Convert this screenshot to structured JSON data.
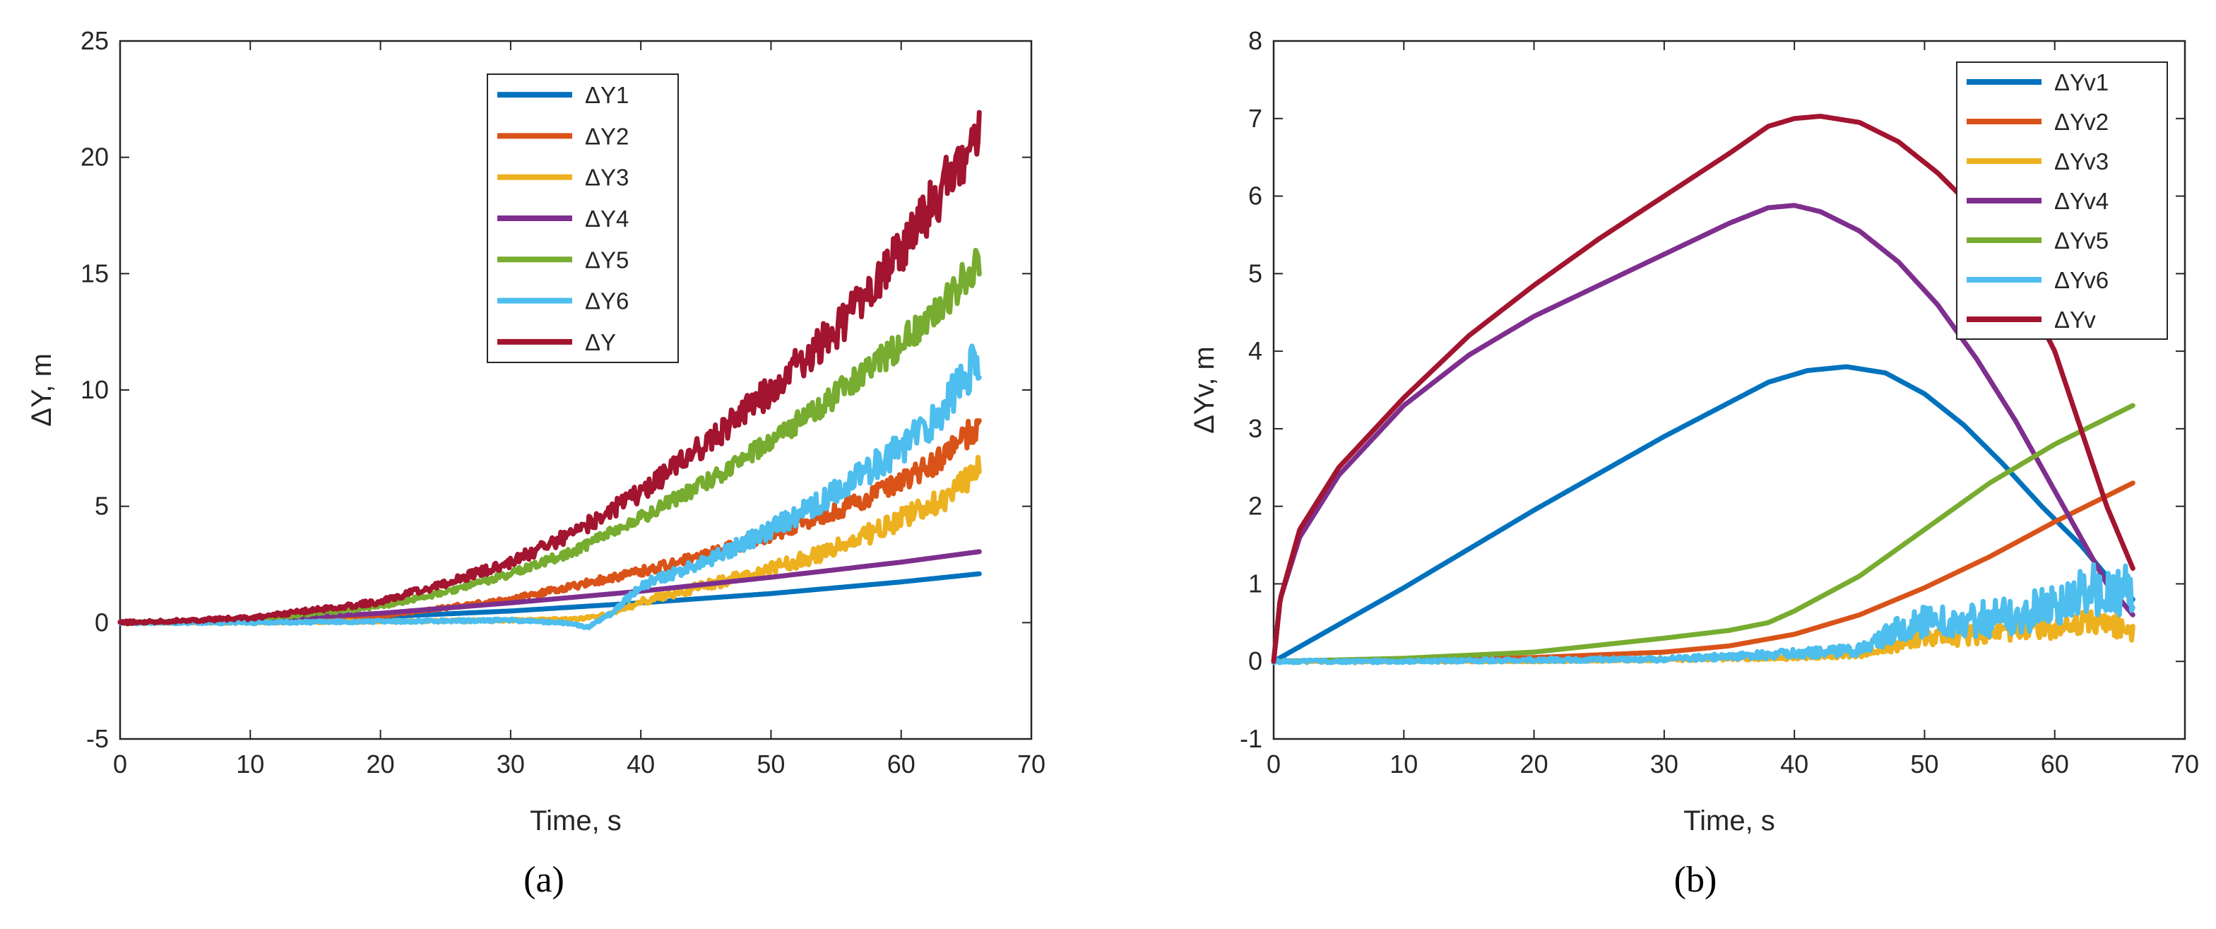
{
  "chart_data": [
    {
      "type": "line",
      "panel_label": "(a)",
      "xlabel": "Time, s",
      "ylabel": "ΔY, m",
      "xlim": [
        0,
        70
      ],
      "ylim": [
        -5,
        25
      ],
      "xticks": [
        0,
        10,
        20,
        30,
        40,
        50,
        60,
        70
      ],
      "yticks": [
        -5,
        0,
        5,
        10,
        15,
        20,
        25
      ],
      "legend_position": "top-center",
      "series": [
        {
          "name": "ΔY1",
          "color": "#0072BD",
          "x": [
            0,
            10,
            20,
            30,
            40,
            50,
            60,
            66
          ],
          "y": [
            0,
            0.08,
            0.25,
            0.5,
            0.85,
            1.25,
            1.75,
            2.1
          ],
          "noise": 0
        },
        {
          "name": "ΔY2",
          "color": "#D95319",
          "x": [
            0,
            10,
            20,
            30,
            35,
            40,
            45,
            50,
            55,
            60,
            63,
            66
          ],
          "y": [
            0,
            0.05,
            0.3,
            1.0,
            1.6,
            2.2,
            2.9,
            3.8,
            4.8,
            6.0,
            7.0,
            8.5
          ],
          "noise": 0.6
        },
        {
          "name": "ΔY3",
          "color": "#EDB120",
          "x": [
            0,
            10,
            20,
            30,
            35,
            38,
            40,
            45,
            50,
            55,
            60,
            63,
            66
          ],
          "y": [
            0,
            0,
            0.05,
            0.1,
            0.15,
            0.4,
            0.9,
            1.6,
            2.3,
            3.2,
            4.4,
            5.3,
            6.5
          ],
          "noise": 0.7
        },
        {
          "name": "ΔY4",
          "color": "#7E2F8E",
          "x": [
            0,
            10,
            20,
            30,
            40,
            50,
            60,
            66
          ],
          "y": [
            0,
            0.12,
            0.4,
            0.85,
            1.35,
            1.95,
            2.6,
            3.05
          ],
          "noise": 0
        },
        {
          "name": "ΔY5",
          "color": "#77AC30",
          "x": [
            0,
            10,
            20,
            25,
            30,
            35,
            40,
            45,
            50,
            55,
            60,
            63,
            66
          ],
          "y": [
            0,
            0.1,
            0.7,
            1.3,
            2.1,
            3.1,
            4.5,
            6.0,
            7.8,
            9.8,
            12.0,
            13.5,
            15.5
          ],
          "noise": 0.8
        },
        {
          "name": "ΔY6",
          "color": "#4DBEEE",
          "x": [
            0,
            10,
            20,
            30,
            34,
            36,
            38,
            40,
            45,
            50,
            55,
            60,
            63,
            66
          ],
          "y": [
            0,
            0,
            0.05,
            0.1,
            0,
            -0.2,
            0.5,
            1.6,
            2.6,
            4.0,
            5.6,
            7.5,
            9.0,
            11.5
          ],
          "noise": 1.0
        },
        {
          "name": "ΔY",
          "color": "#A2142F",
          "x": [
            0,
            10,
            20,
            25,
            30,
            35,
            40,
            45,
            50,
            55,
            60,
            63,
            66
          ],
          "y": [
            0,
            0.2,
            0.9,
            1.7,
            2.6,
            3.9,
            5.6,
            7.7,
            10.0,
            12.6,
            16.0,
            18.5,
            21.0
          ],
          "noise": 1.3
        }
      ]
    },
    {
      "type": "line",
      "panel_label": "(b)",
      "xlabel": "Time, s",
      "ylabel": "ΔYv, m",
      "xlim": [
        0,
        70
      ],
      "ylim": [
        -1,
        8
      ],
      "xticks": [
        0,
        10,
        20,
        30,
        40,
        50,
        60,
        70
      ],
      "yticks": [
        -1,
        0,
        1,
        2,
        3,
        4,
        5,
        6,
        7,
        8
      ],
      "legend_position": "top-right",
      "series": [
        {
          "name": "ΔYv1",
          "color": "#0072BD",
          "x": [
            0,
            10,
            20,
            30,
            38,
            41,
            44,
            47,
            50,
            53,
            56,
            59,
            62,
            64,
            66
          ],
          "y": [
            0,
            0.95,
            1.95,
            2.9,
            3.6,
            3.75,
            3.8,
            3.72,
            3.45,
            3.05,
            2.55,
            2.0,
            1.5,
            1.1,
            0.8
          ],
          "noise": 0
        },
        {
          "name": "ΔYv2",
          "color": "#D95319",
          "x": [
            0,
            10,
            20,
            30,
            35,
            40,
            45,
            50,
            55,
            60,
            66
          ],
          "y": [
            0,
            0.02,
            0.05,
            0.12,
            0.2,
            0.35,
            0.6,
            0.95,
            1.35,
            1.8,
            2.3
          ],
          "noise": 0
        },
        {
          "name": "ΔYv3",
          "color": "#EDB120",
          "x": [
            0,
            10,
            20,
            30,
            40,
            45,
            48,
            50,
            55,
            60,
            63,
            66
          ],
          "y": [
            0,
            0,
            0,
            0.02,
            0.05,
            0.1,
            0.2,
            0.3,
            0.35,
            0.45,
            0.5,
            0.4
          ],
          "noise": 0.15
        },
        {
          "name": "ΔYv4",
          "color": "#7E2F8E",
          "x": [
            0,
            0.5,
            2,
            5,
            10,
            15,
            20,
            25,
            30,
            35,
            38,
            40,
            42,
            45,
            48,
            51,
            54,
            57,
            60,
            62,
            64,
            66
          ],
          "y": [
            0,
            0.8,
            1.6,
            2.4,
            3.3,
            3.95,
            4.45,
            4.85,
            5.25,
            5.65,
            5.85,
            5.88,
            5.8,
            5.55,
            5.15,
            4.6,
            3.9,
            3.1,
            2.2,
            1.6,
            1.0,
            0.6
          ],
          "noise": 0
        },
        {
          "name": "ΔYv5",
          "color": "#77AC30",
          "x": [
            0,
            10,
            20,
            30,
            35,
            38,
            40,
            45,
            50,
            55,
            60,
            66
          ],
          "y": [
            0,
            0.04,
            0.12,
            0.3,
            0.4,
            0.5,
            0.65,
            1.1,
            1.7,
            2.3,
            2.8,
            3.3
          ],
          "noise": 0
        },
        {
          "name": "ΔYv6",
          "color": "#4DBEEE",
          "x": [
            0,
            10,
            20,
            30,
            40,
            45,
            48,
            50,
            55,
            60,
            63,
            64,
            66
          ],
          "y": [
            0,
            0,
            0.02,
            0.03,
            0.1,
            0.15,
            0.4,
            0.5,
            0.55,
            0.7,
            0.9,
            1.0,
            0.9
          ],
          "noise": 0.35
        },
        {
          "name": "ΔYv",
          "color": "#A2142F",
          "x": [
            0,
            0.5,
            2,
            5,
            10,
            15,
            20,
            25,
            30,
            35,
            38,
            40,
            42,
            45,
            48,
            51,
            54,
            57,
            60,
            62,
            64,
            66
          ],
          "y": [
            0,
            0.8,
            1.7,
            2.5,
            3.4,
            4.2,
            4.85,
            5.45,
            6.0,
            6.55,
            6.9,
            7.0,
            7.03,
            6.95,
            6.7,
            6.3,
            5.8,
            5.0,
            4.0,
            3.0,
            2.0,
            1.2
          ],
          "noise": 0
        }
      ]
    }
  ]
}
